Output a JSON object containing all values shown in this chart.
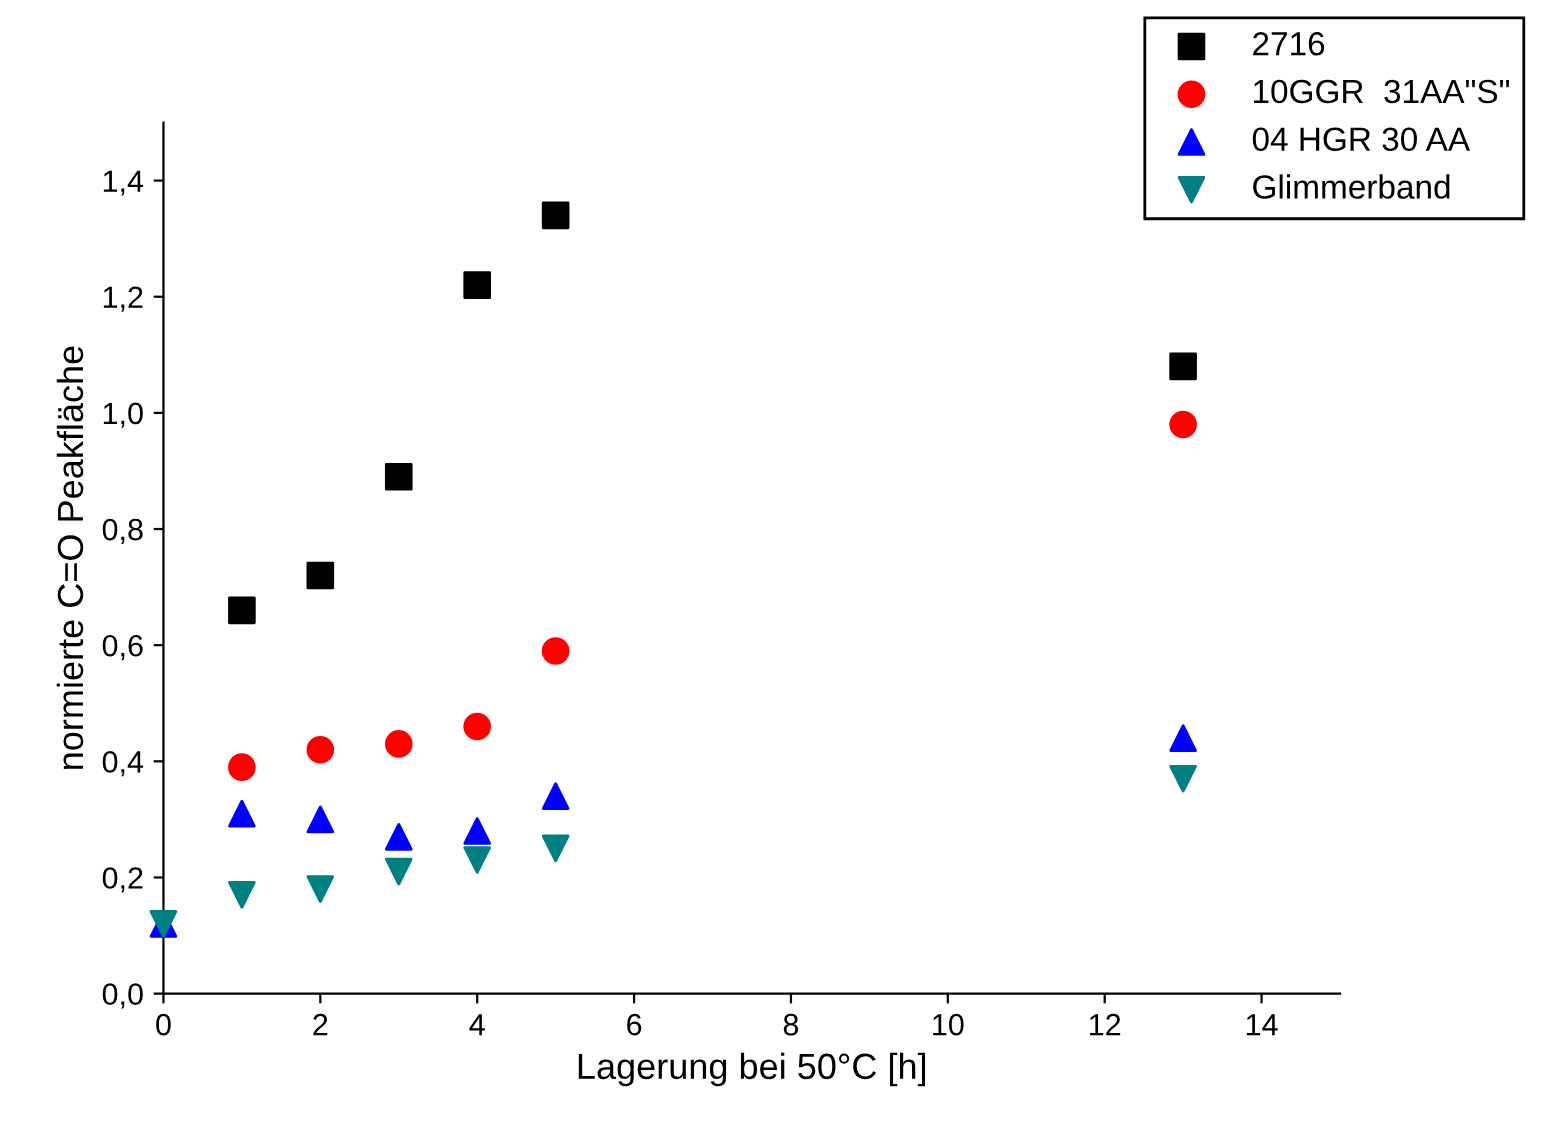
{
  "chart_data": {
    "type": "scatter",
    "xlabel": "Lagerung bei 50°C [h]",
    "ylabel": "normierte C=O Peakfläche",
    "xlim": [
      0,
      15
    ],
    "xticks": [
      0,
      2,
      4,
      6,
      8,
      10,
      12,
      14
    ],
    "ylim": [
      0,
      1.5
    ],
    "yticks": [
      {
        "value": 0,
        "label": "0,0"
      },
      {
        "value": 0.2,
        "label": "0,2"
      },
      {
        "value": 0.4,
        "label": "0,4"
      },
      {
        "value": 0.6,
        "label": "0,6"
      },
      {
        "value": 0.8,
        "label": "0,8"
      },
      {
        "value": 1.0,
        "label": "1,0"
      },
      {
        "value": 1.2,
        "label": "1,2"
      },
      {
        "value": 1.4,
        "label": "1,4"
      }
    ],
    "x": [
      0,
      1,
      2,
      3,
      4,
      5,
      13
    ],
    "legend": "top right",
    "grid": false,
    "series": [
      {
        "name": "2716",
        "color": "#000000",
        "marker": "square",
        "values": [
          null,
          0.66,
          0.72,
          0.89,
          1.22,
          1.34,
          1.08
        ]
      },
      {
        "name": "10GGR  31AA\"S\"",
        "color": "#ff0000",
        "marker": "circle",
        "values": [
          null,
          0.39,
          0.42,
          0.43,
          0.46,
          0.59,
          0.98
        ]
      },
      {
        "name": "04 HGR 30 AA",
        "color": "#0000ff",
        "marker": "triangle",
        "values": [
          0.12,
          0.31,
          0.3,
          0.27,
          0.28,
          0.34,
          0.44
        ]
      },
      {
        "name": "Glimmerband",
        "color": "#008080",
        "marker": "triangle_down",
        "values": [
          0.12,
          0.17,
          0.18,
          0.21,
          0.23,
          0.25,
          0.37
        ]
      }
    ]
  }
}
